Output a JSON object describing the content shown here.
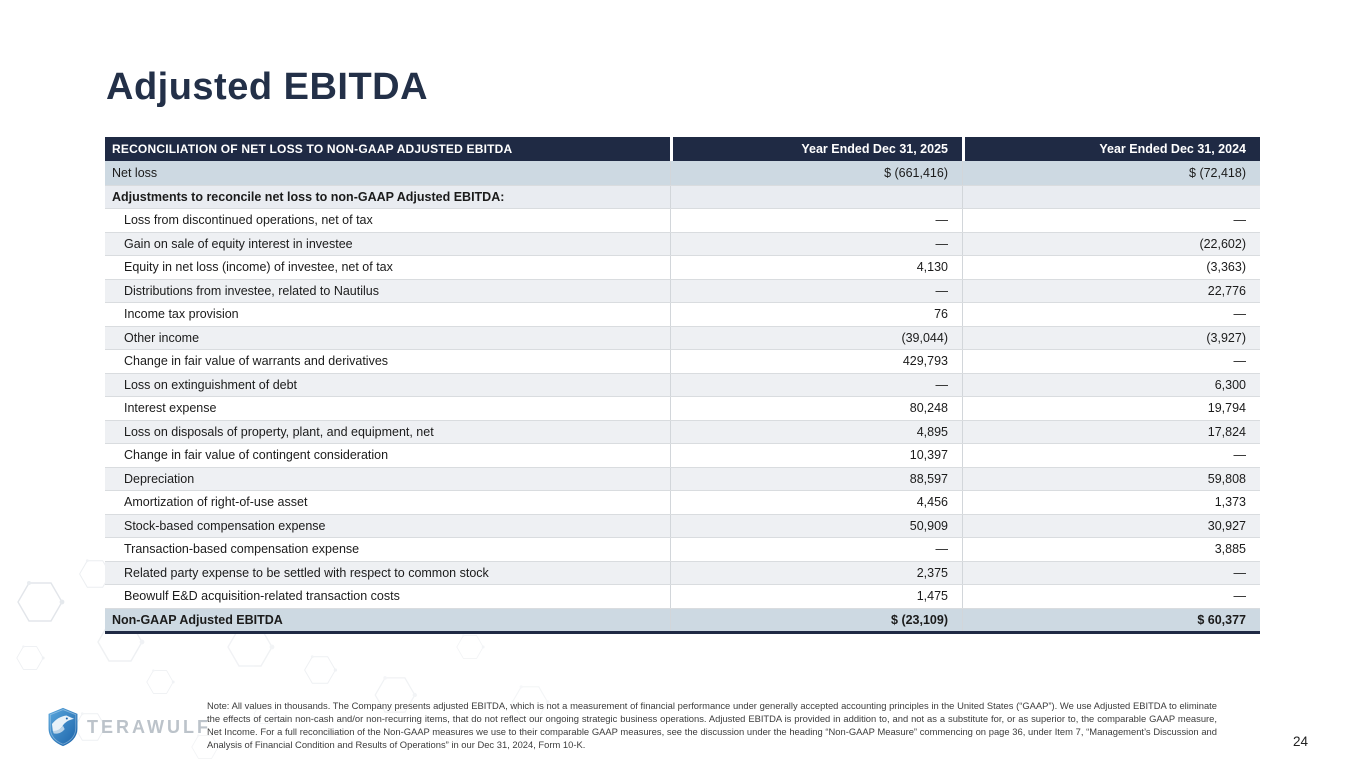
{
  "slide": {
    "title": "Adjusted EBITDA",
    "page_number": "24"
  },
  "colors": {
    "header_bg": "#1F2A44",
    "highlight_row_bg": "#CDD9E2",
    "alt_row_bg": "#EEF0F3",
    "section_row_bg": "#E9ECF1",
    "title_color": "#233048",
    "logo_blue": "#2F86C9"
  },
  "table": {
    "header": {
      "col1": "RECONCILIATION OF NET LOSS TO NON-GAAP ADJUSTED EBITDA",
      "col2": "Year Ended Dec 31, 2025",
      "col3": "Year Ended Dec 31, 2024"
    },
    "rows": [
      {
        "label": "Net loss",
        "v2025": "$ (661,416)",
        "v2024": "$ (72,418)",
        "style": "highlight"
      },
      {
        "label": "Adjustments to reconcile net loss to non-GAAP Adjusted EBITDA:",
        "v2025": "",
        "v2024": "",
        "style": "section"
      },
      {
        "label": "Loss from discontinued operations, net of tax",
        "v2025": "—",
        "v2024": "—",
        "style": "item"
      },
      {
        "label": "Gain on sale of equity interest in investee",
        "v2025": "—",
        "v2024": "(22,602)",
        "style": "item alt"
      },
      {
        "label": "Equity in net loss (income) of investee, net of tax",
        "v2025": "4,130",
        "v2024": "(3,363)",
        "style": "item"
      },
      {
        "label": "Distributions from investee, related to Nautilus",
        "v2025": "—",
        "v2024": "22,776",
        "style": "item alt"
      },
      {
        "label": "Income tax provision",
        "v2025": "76",
        "v2024": "—",
        "style": "item"
      },
      {
        "label": "Other income",
        "v2025": "(39,044)",
        "v2024": "(3,927)",
        "style": "item alt"
      },
      {
        "label": "Change in fair value of warrants and derivatives",
        "v2025": "429,793",
        "v2024": "—",
        "style": "item"
      },
      {
        "label": "Loss on extinguishment of debt",
        "v2025": "—",
        "v2024": "6,300",
        "style": "item alt"
      },
      {
        "label": "Interest expense",
        "v2025": "80,248",
        "v2024": "19,794",
        "style": "item"
      },
      {
        "label": "Loss on disposals of property, plant, and equipment, net",
        "v2025": "4,895",
        "v2024": "17,824",
        "style": "item alt"
      },
      {
        "label": "Change in fair value of contingent consideration",
        "v2025": "10,397",
        "v2024": "—",
        "style": "item"
      },
      {
        "label": "Depreciation",
        "v2025": "88,597",
        "v2024": "59,808",
        "style": "item alt"
      },
      {
        "label": "Amortization of right-of-use asset",
        "v2025": "4,456",
        "v2024": "1,373",
        "style": "item"
      },
      {
        "label": "Stock-based compensation expense",
        "v2025": "50,909",
        "v2024": "30,927",
        "style": "item alt"
      },
      {
        "label": "Transaction-based compensation expense",
        "v2025": "—",
        "v2024": "3,885",
        "style": "item"
      },
      {
        "label": "Related party expense to be settled with respect to common stock",
        "v2025": "2,375",
        "v2024": "—",
        "style": "item alt"
      },
      {
        "label": "Beowulf E&D acquisition-related transaction costs",
        "v2025": "1,475",
        "v2024": "—",
        "style": "item"
      },
      {
        "label": "Non-GAAP Adjusted EBITDA",
        "v2025": "$ (23,109)",
        "v2024": "$ 60,377",
        "style": "total"
      }
    ]
  },
  "footer": {
    "logo_text": "TERAWULF",
    "note": "Note: All values in thousands. The Company presents adjusted EBITDA, which is not a measurement of financial performance under generally accepted accounting principles in the United States (“GAAP”). We use Adjusted EBITDA to eliminate the effects of certain non-cash and/or non-recurring items, that do not reflect our ongoing strategic business operations. Adjusted EBITDA is provided in addition to, and not as a substitute for, or as superior to, the comparable GAAP measure, Net Income. For a full reconciliation of the Non-GAAP measures we use to their comparable GAAP measures, see the discussion under the heading “Non-GAAP Measure” commencing on page 36, under Item 7, “Management’s Discussion and Analysis of Financial Condition and Results of Operations” in our Dec 31, 2024, Form 10-K."
  }
}
